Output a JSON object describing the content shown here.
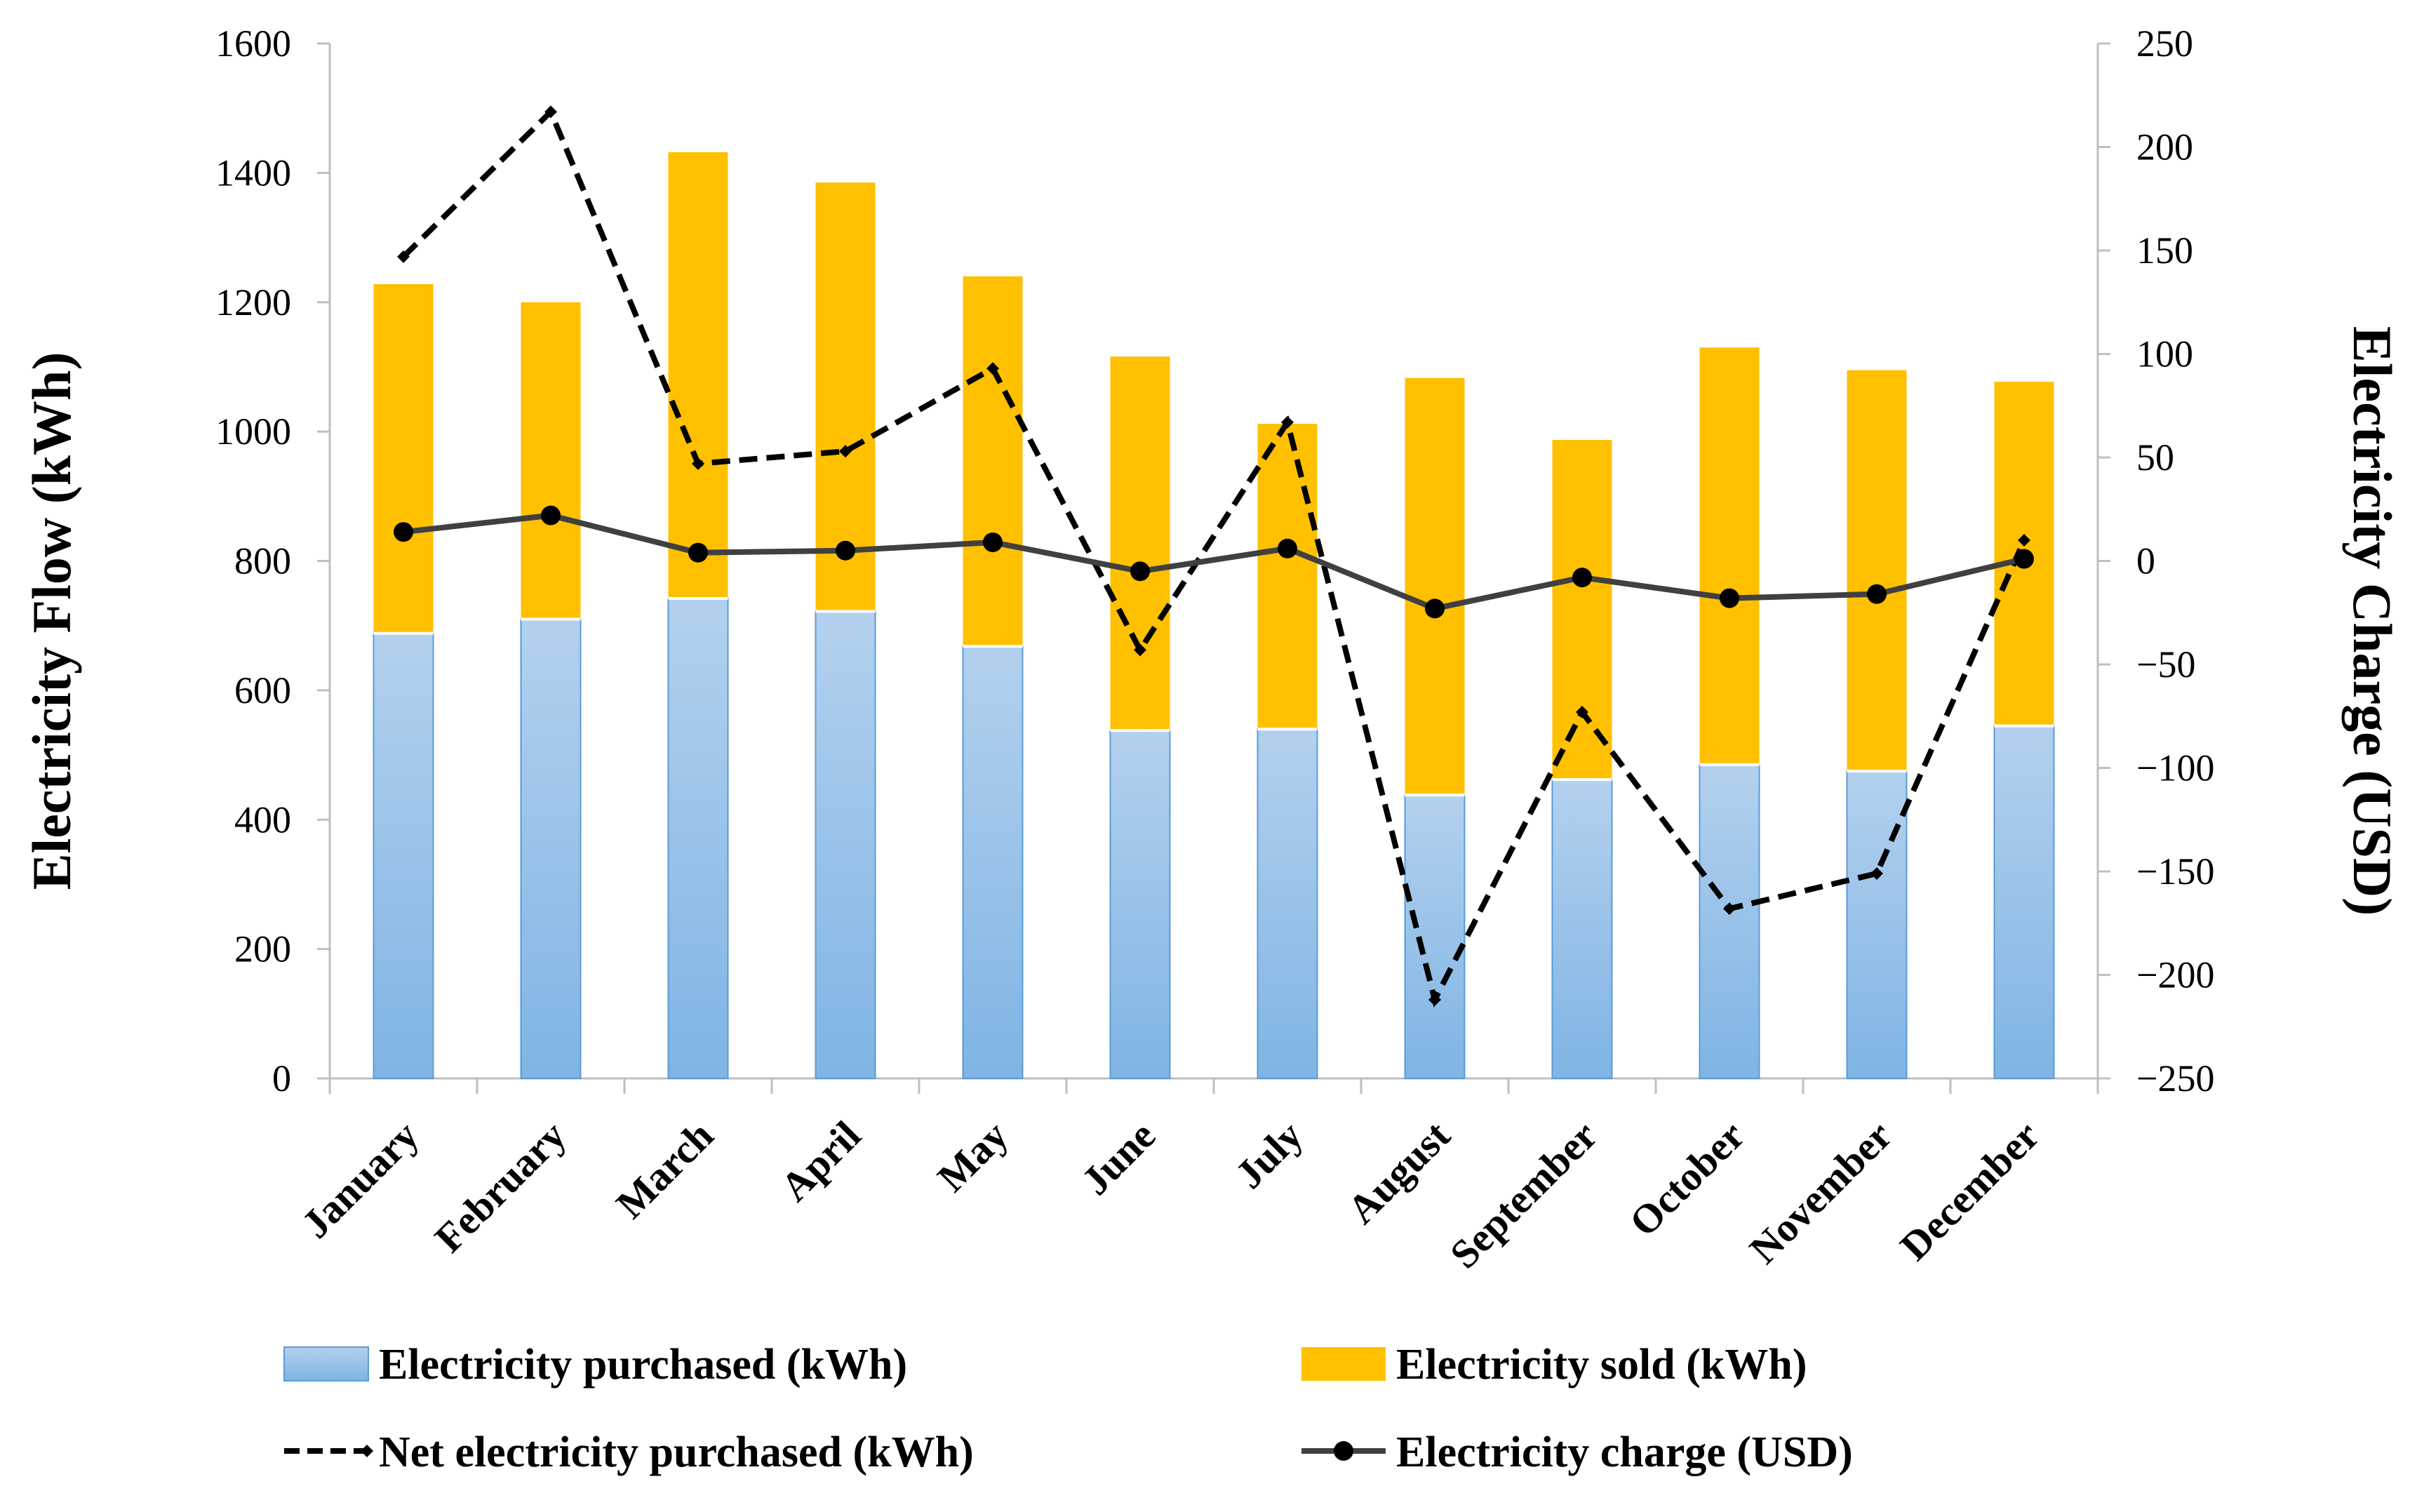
{
  "chart_data": {
    "type": "bar",
    "stacked": true,
    "categories": [
      "January",
      "February",
      "March",
      "April",
      "May",
      "June",
      "July",
      "August",
      "September",
      "October",
      "November",
      "December"
    ],
    "y_left": {
      "label": "Electricity Flow (kWh)",
      "range": [
        0,
        1600
      ],
      "ticks": [
        0,
        200,
        400,
        600,
        800,
        1000,
        1200,
        1400,
        1600
      ]
    },
    "y_right": {
      "label": "Electricity Charge (USD)",
      "range": [
        -250,
        250
      ],
      "ticks": [
        -250,
        -200,
        -150,
        -100,
        -50,
        0,
        50,
        100,
        150,
        200,
        250
      ]
    },
    "series": [
      {
        "name": "Electricity purchased  (kWh)",
        "type": "bar",
        "axis": "left",
        "color": "#9dc3e6",
        "values": [
          688,
          710,
          742,
          722,
          668,
          538,
          540,
          438,
          462,
          485,
          475,
          545
        ]
      },
      {
        "name": "Electricity sold (kWh)",
        "type": "bar",
        "axis": "left",
        "color": "#ffc000",
        "values": [
          540,
          490,
          690,
          663,
          572,
          578,
          472,
          645,
          525,
          645,
          620,
          532
        ]
      },
      {
        "name": "Net electricity purchased (kWh)",
        "type": "line",
        "style": "dashed",
        "axis": "right",
        "color": "#000000",
        "values": [
          147,
          217,
          47,
          53,
          93,
          -43,
          67,
          -212,
          -73,
          -168,
          -151,
          10
        ]
      },
      {
        "name": "Electricity charge (USD)",
        "type": "line",
        "style": "solid-markers",
        "axis": "right",
        "color": "#404040",
        "values": [
          14,
          22,
          4,
          5,
          9,
          -5,
          6,
          -23,
          -8,
          -18,
          -16,
          1
        ]
      }
    ],
    "legend": {
      "placement": "bottom"
    },
    "grid": false
  }
}
